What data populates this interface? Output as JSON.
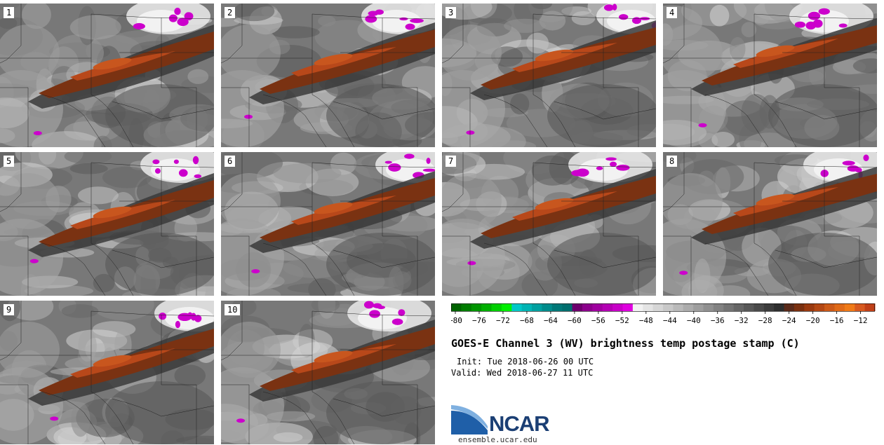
{
  "panels": [
    {
      "label": "1"
    },
    {
      "label": "2"
    },
    {
      "label": "3"
    },
    {
      "label": "4"
    },
    {
      "label": "5"
    },
    {
      "label": "6"
    },
    {
      "label": "7"
    },
    {
      "label": "8"
    },
    {
      "label": "9"
    },
    {
      "label": "10"
    }
  ],
  "colorbar": {
    "ticks": [
      "−80",
      "−76",
      "−72",
      "−68",
      "−64",
      "−60",
      "−56",
      "−52",
      "−48",
      "−44",
      "−40",
      "−36",
      "−32",
      "−28",
      "−24",
      "−20",
      "−16",
      "−12"
    ],
    "colors": [
      "#006400",
      "#007d00",
      "#009600",
      "#00b000",
      "#00d000",
      "#00f000",
      "#00c8c8",
      "#00b4b4",
      "#00a0a0",
      "#008c8c",
      "#007878",
      "#006e6e",
      "#6e006e",
      "#8c008c",
      "#a000a0",
      "#b400b4",
      "#c800c8",
      "#e000e0",
      "#f2f2f2",
      "#e4e4e4",
      "#d6d6d6",
      "#c8c8c8",
      "#bababa",
      "#acacac",
      "#9e9e9e",
      "#909090",
      "#828282",
      "#747474",
      "#666666",
      "#585858",
      "#4a4a4a",
      "#3c3c3c",
      "#2e2e2e",
      "#5a2a1a",
      "#7a3010",
      "#9a3a10",
      "#b44814",
      "#cc5a18",
      "#e06a18",
      "#f07a18",
      "#d85a20",
      "#c04018"
    ]
  },
  "title": "GOES-E Channel 3 (WV) brightness temp postage stamp (C)",
  "init": "Init: Tue 2018-06-26 00 UTC",
  "valid": "Valid: Wed 2018-06-27 11 UTC",
  "logo": {
    "text": "NCAR",
    "url": "ensemble.ucar.edu"
  }
}
